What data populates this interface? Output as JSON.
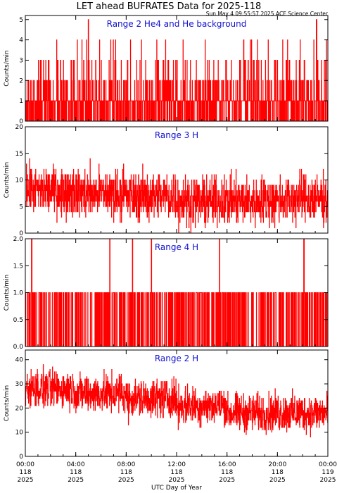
{
  "figure": {
    "title": "LET ahead BUFRATES Data for 2025-118",
    "timestamp": "Sun May  4 09:55:57 2025 ACE Science Center",
    "xlabel": "UTC Day of Year",
    "x_tick_labels": [
      {
        "time": "00:00",
        "doy": "118",
        "year": "2025"
      },
      {
        "time": "04:00",
        "doy": "118",
        "year": "2025"
      },
      {
        "time": "08:00",
        "doy": "118",
        "year": "2025"
      },
      {
        "time": "12:00",
        "doy": "118",
        "year": "2025"
      },
      {
        "time": "16:00",
        "doy": "118",
        "year": "2025"
      },
      {
        "time": "20:00",
        "doy": "118",
        "year": "2025"
      },
      {
        "time": "00:00",
        "doy": "119",
        "year": "2025"
      }
    ]
  },
  "chart_data": [
    {
      "type": "line",
      "title": "Range 2 He4 and He background",
      "ylabel": "Counts/min",
      "ylim": [
        0,
        5.2
      ],
      "yticks": [
        0,
        1,
        2,
        3,
        4,
        5
      ],
      "ytick_labels": [
        "0",
        "1",
        "2",
        "3",
        "4",
        "5"
      ],
      "xlim_hours": [
        0,
        24
      ],
      "values_description_free": true,
      "levels": [
        0,
        1,
        2,
        3,
        4,
        5
      ],
      "typical_range": [
        0,
        2
      ],
      "spikes_hours": [
        5.0,
        23.1
      ]
    },
    {
      "type": "line",
      "title": "Range 3 H",
      "ylabel": "Counts/min",
      "ylim": [
        0,
        20
      ],
      "yticks": [
        0,
        5,
        10,
        15,
        20
      ],
      "ytick_labels": [
        "0",
        "5",
        "10",
        "15",
        "20"
      ],
      "xlim_hours": [
        0,
        24
      ],
      "segments_mean": [
        {
          "from": 0,
          "to": 4,
          "mean": 8
        },
        {
          "from": 4,
          "to": 8,
          "mean": 7.5
        },
        {
          "from": 8,
          "to": 12,
          "mean": 7
        },
        {
          "from": 12,
          "to": 16,
          "mean": 6
        },
        {
          "from": 16,
          "to": 20,
          "mean": 6
        },
        {
          "from": 20,
          "to": 24,
          "mean": 6.5
        }
      ]
    },
    {
      "type": "line",
      "title": "Range 4 H",
      "ylabel": "Counts/min",
      "ylim": [
        0,
        2.0
      ],
      "yticks": [
        0,
        0.5,
        1.0,
        1.5,
        2.0
      ],
      "ytick_labels": [
        "0.0",
        "0.5",
        "1.0",
        "1.5",
        "2.0"
      ],
      "xlim_hours": [
        0,
        24
      ],
      "levels": [
        0,
        1,
        2
      ],
      "spikes_hours": [
        0.5,
        6.7,
        8.5,
        10.0,
        15.4,
        22.1
      ]
    },
    {
      "type": "line",
      "title": "Range 2 H",
      "ylabel": "Counts/min",
      "ylim": [
        0,
        44
      ],
      "yticks": [
        0,
        10,
        20,
        30,
        40
      ],
      "ytick_labels": [
        "0",
        "10",
        "20",
        "30",
        "40"
      ],
      "xlim_hours": [
        0,
        24
      ],
      "segments_mean": [
        {
          "from": 0,
          "to": 4,
          "mean": 28
        },
        {
          "from": 4,
          "to": 8,
          "mean": 26
        },
        {
          "from": 8,
          "to": 12,
          "mean": 24
        },
        {
          "from": 12,
          "to": 16,
          "mean": 21
        },
        {
          "from": 16,
          "to": 20,
          "mean": 18
        },
        {
          "from": 20,
          "to": 24,
          "mean": 18
        }
      ]
    }
  ]
}
